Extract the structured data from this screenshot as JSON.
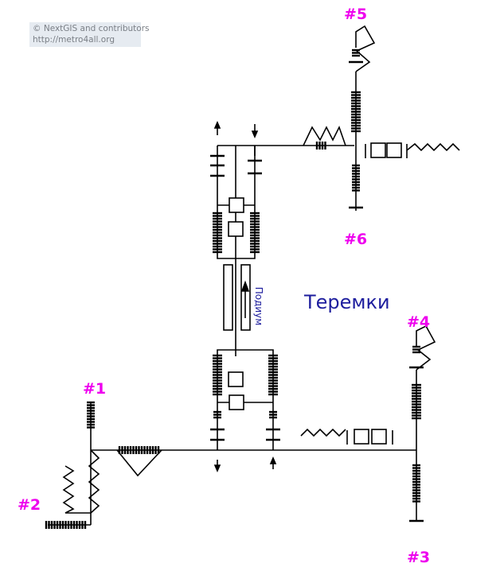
{
  "attribution": {
    "line1": "© NextGIS and contributors",
    "line2": "http://metro4all.org"
  },
  "station": {
    "name": "Теремки"
  },
  "platform_label": "Подиум",
  "exits": [
    "#1",
    "#2",
    "#3",
    "#4",
    "#5",
    "#6"
  ],
  "colors": {
    "exit_label": "#ee00ee",
    "station_label": "#1e1e9e",
    "platform": "#1e1e9e",
    "line": "#000000"
  }
}
